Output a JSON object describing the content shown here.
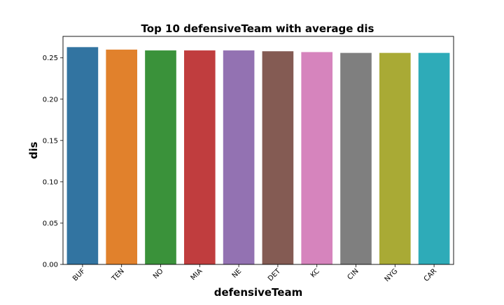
{
  "chart_data": {
    "type": "bar",
    "title": "Top 10 defensiveTeam with average dis",
    "xlabel": "defensiveTeam",
    "ylabel": "dis",
    "categories": [
      "BUF",
      "TEN",
      "NO",
      "MIA",
      "NE",
      "DET",
      "KC",
      "CIN",
      "NYG",
      "CAR"
    ],
    "values": [
      0.263,
      0.26,
      0.259,
      0.259,
      0.259,
      0.258,
      0.257,
      0.256,
      0.256,
      0.256
    ],
    "colors": [
      "#3274a1",
      "#e1812c",
      "#3a923a",
      "#c03d3e",
      "#9372b2",
      "#845b53",
      "#d684bd",
      "#7f7f7f",
      "#a9aa35",
      "#2eabb8"
    ],
    "ylim": [
      0,
      0.276
    ],
    "yticks": [
      "0.00",
      "0.05",
      "0.10",
      "0.15",
      "0.20",
      "0.25"
    ],
    "grid": false,
    "legend": "none"
  }
}
